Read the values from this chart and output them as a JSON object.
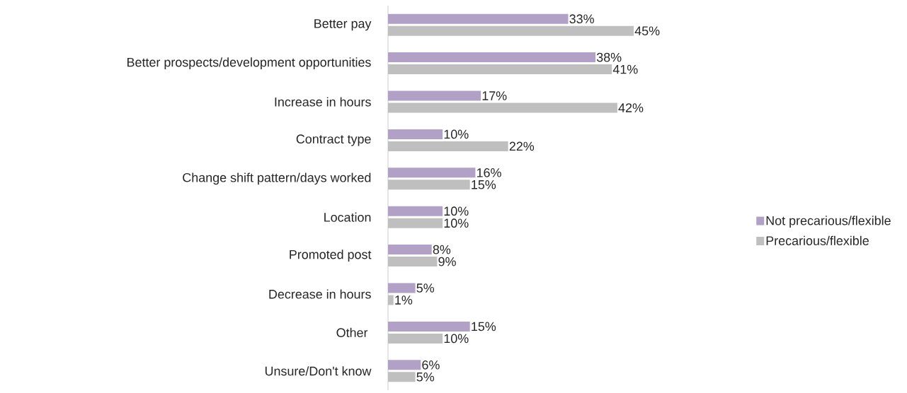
{
  "chart_data": {
    "type": "bar",
    "orientation": "horizontal",
    "legend": "right",
    "categories": [
      "Better pay",
      "Better prospects/development opportunities",
      "Increase in hours",
      "Contract type",
      "Change shift pattern/days worked",
      "Location",
      "Promoted post",
      "Decrease in hours",
      "Other ",
      "Unsure/Don't know"
    ],
    "series": [
      {
        "name": "Not precarious/flexible",
        "color": "#b2a1c7",
        "values": [
          33,
          38,
          17,
          10,
          16,
          10,
          8,
          5,
          15,
          6
        ],
        "value_labels": [
          "33%",
          "38%",
          "17%",
          "10%",
          "16%",
          "10%",
          "8%",
          "5%",
          "15%",
          "6%"
        ]
      },
      {
        "name": "Precarious/flexible",
        "color": "#bfbfbf",
        "values": [
          45,
          41,
          42,
          22,
          15,
          10,
          9,
          1,
          10,
          5
        ],
        "value_labels": [
          "45%",
          "41%",
          "42%",
          "22%",
          "15%",
          "10%",
          "9%",
          "1%",
          "10%",
          "5%"
        ]
      }
    ]
  }
}
